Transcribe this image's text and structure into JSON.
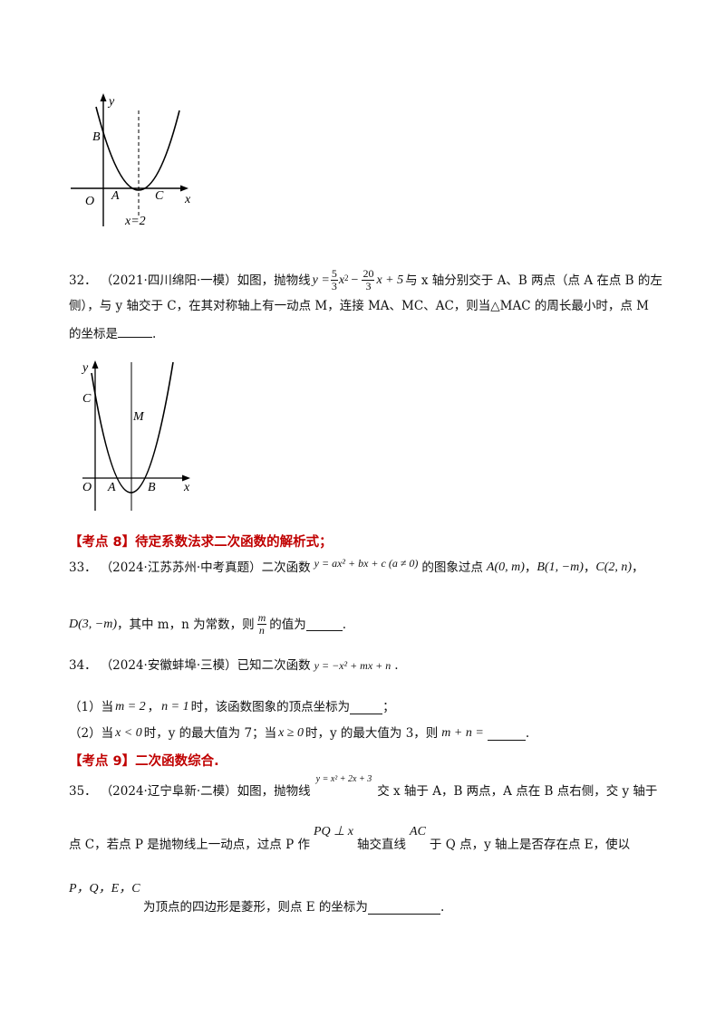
{
  "fig1": {
    "y": "y",
    "B": "B",
    "O": "O",
    "A": "A",
    "C": "C",
    "x": "x",
    "axis": "x=2"
  },
  "fig2": {
    "y": "y",
    "C": "C",
    "M": "M",
    "O": "O",
    "A": "A",
    "B": "B",
    "x": "x"
  },
  "q32": {
    "num": "32．",
    "line1_a": "（2021·四川绵阳·一模）如图，抛物线",
    "eq_y": "y =",
    "f1_num": "5",
    "f1_den": "3",
    "eq_x2": "x",
    "sq": "2",
    "minus": "−",
    "f2_num": "20",
    "f2_den": "3",
    "eq_rest": "x + 5",
    "line1_b": "与 x 轴分别交于 A、B 两点（点 A 在点 B 的左",
    "line2": "侧），与 y 轴交于 C，在其对称轴上有一动点 M，连接 MA、MC、AC，则当△MAC 的周长最小时，点 M",
    "line3": "的坐标是"
  },
  "section8": "【考点 8】待定系数法求二次函数的解析式；",
  "q33": {
    "num": "33．",
    "text_a": "（2024·江苏苏州·中考真题）二次函数",
    "eq": "y = ax² + bx + c (a ≠ 0)",
    "text_b": "的图象过点",
    "pA": "A(0, m)",
    "comma1": "，",
    "pB": "B(1, −m)",
    "comma2": "，",
    "pC": "C(2, n)",
    "comma3": "，",
    "pD": "D(3, −m)",
    "text_c": "，其中 m，n 为常数，则",
    "frac_num": "m",
    "frac_den": "n",
    "text_d": "的值为"
  },
  "q34": {
    "num": "34．",
    "text_a": "（2024·安徽蚌埠·三模）已知二次函数",
    "eq": "y = −x² + mx + n",
    "period": ".",
    "s1_a": "（1）当",
    "s1_eq1": "m = 2",
    "s1_sep": "，",
    "s1_eq2": "n = 1",
    "s1_b": "时，该函数图象的顶点坐标为",
    "s1_end": "；",
    "s2_a": "（2）当",
    "s2_eq1": "x < 0",
    "s2_b": "时，y 的最大值为 7；当",
    "s2_eq2": "x ≥ 0",
    "s2_c": "时，y 的最大值为 3，则",
    "s2_eq3": "m + n =",
    "s2_end": "."
  },
  "section9": "【考点 9】二次函数综合.",
  "q35": {
    "num": "35．",
    "text_a": "（2024·辽宁阜新·二模）如图，抛物线",
    "eq": "y =  x² + 2x + 3",
    "text_b": "交 x 轴于 A，B 两点，A 点在 B 点右侧，交 y 轴于",
    "line2_a": "点 C，若点 P 是抛物线上一动点，过点 P 作",
    "eq2": "PQ ⊥ x",
    "line2_b": "轴交直线",
    "eq3": "AC",
    "line2_c": "于 Q 点，y 轴上是否存在点 E，使以",
    "eq4": "P，Q，E，C",
    "line4_a": "为顶点的四边形是菱形，则点 E 的坐标为",
    "line4_end": "."
  }
}
